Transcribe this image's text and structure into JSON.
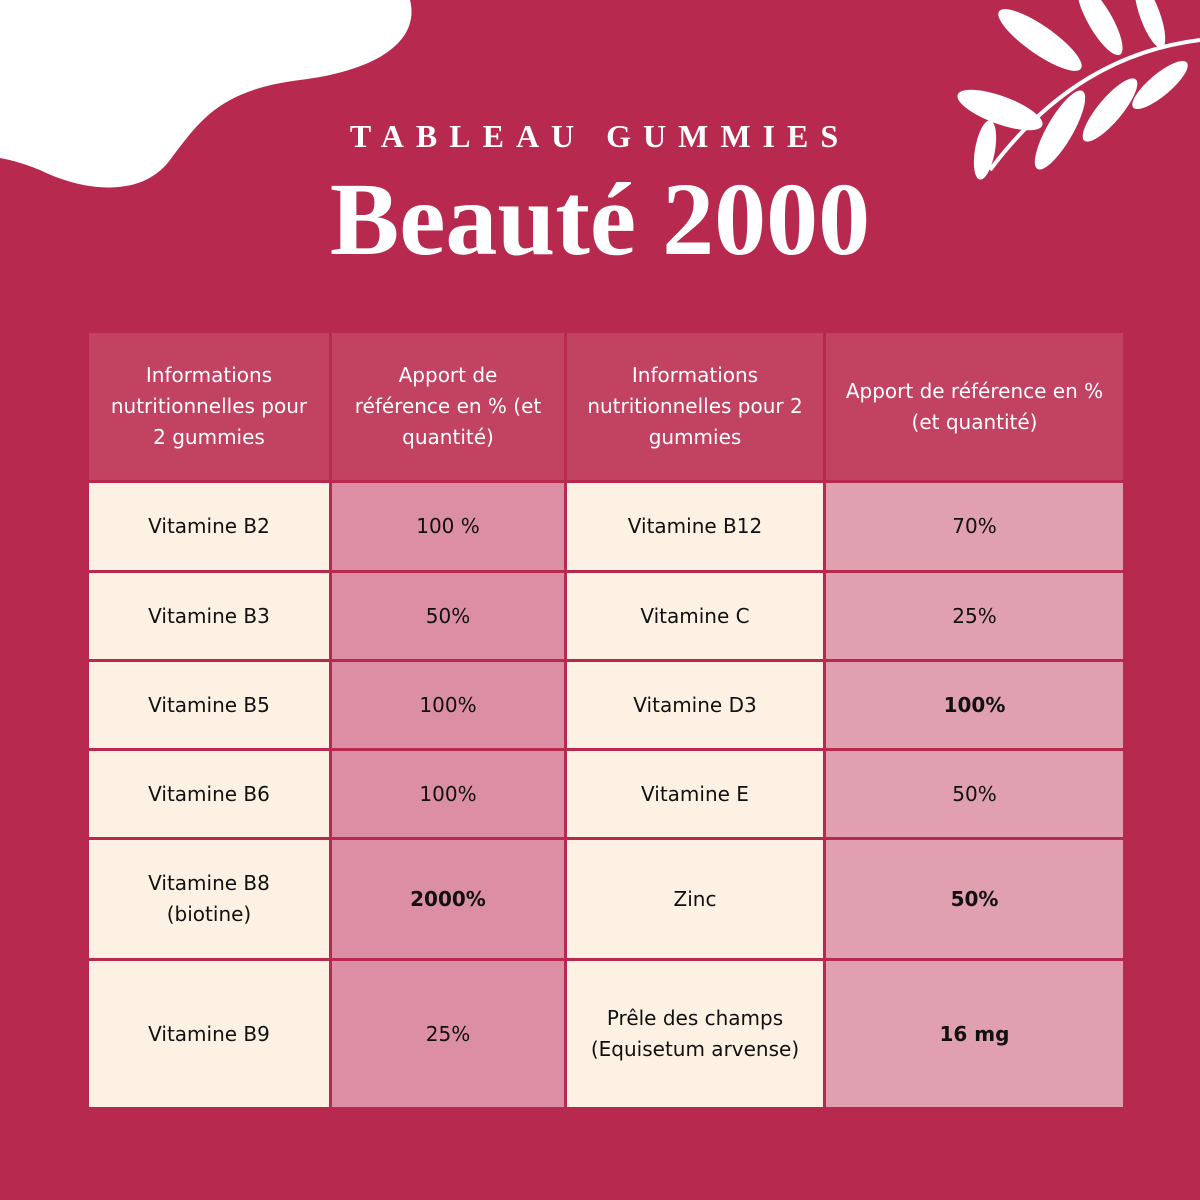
{
  "header": {
    "title": "TABLEAU GUMMIES",
    "subtitle": "Beauté 2000"
  },
  "table": {
    "headers": [
      "Informations nutritionnelles pour 2 gummies",
      "Apport de référence en % (et quantité)",
      "Informations nutritionnelles pour 2 gummies",
      "Apport de référence en % (et quantité)"
    ],
    "rows": [
      [
        "Vitamine B2",
        "100 %",
        "Vitamine B12",
        "70%"
      ],
      [
        "Vitamine B3",
        "50%",
        "Vitamine C",
        "25%"
      ],
      [
        "Vitamine B5",
        "100%",
        "Vitamine D3",
        "100%"
      ],
      [
        "Vitamine B6",
        "100%",
        "Vitamine E",
        "50%"
      ],
      [
        "Vitamine B8 (biotine)",
        "2000%",
        "Zinc",
        "50%"
      ],
      [
        "Vitamine B9",
        "25%",
        "Prêle des champs (Equisetum arvense)",
        "16 mg"
      ]
    ]
  }
}
